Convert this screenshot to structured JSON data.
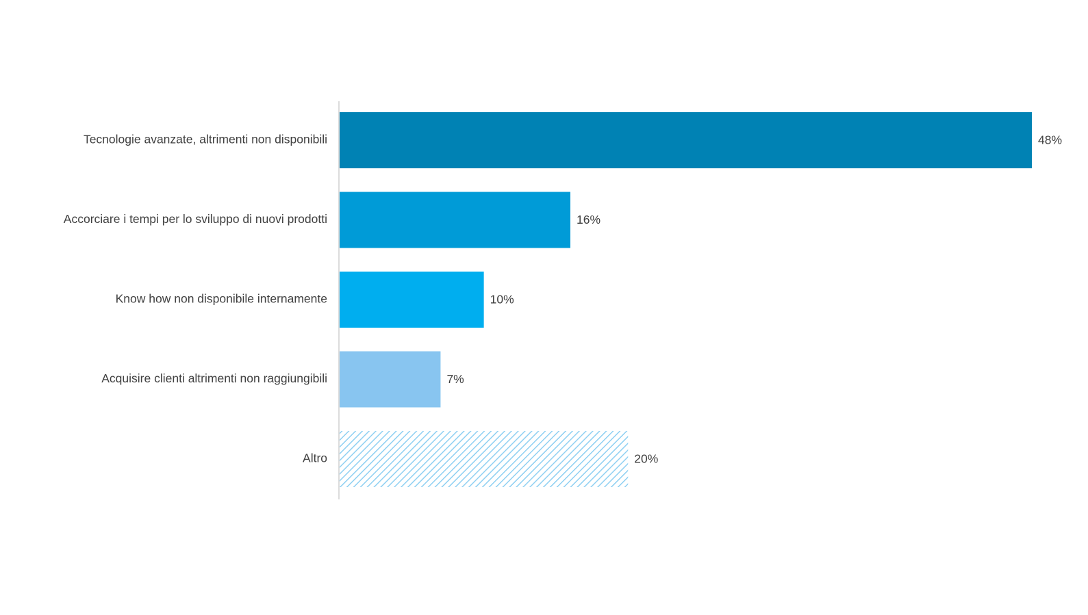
{
  "chart_data": {
    "type": "bar",
    "orientation": "horizontal",
    "categories": [
      "Tecnologie avanzate, altrimenti non disponibili",
      "Accorciare i tempi per lo sviluppo di nuovi prodotti",
      "Know how non disponibile internamente",
      "Acquisire clienti altrimenti non raggiungibili",
      "Altro"
    ],
    "values": [
      48,
      16,
      10,
      7,
      20
    ],
    "value_labels": [
      "48%",
      "16%",
      "10%",
      "7%",
      "20%"
    ],
    "bar_colors": [
      "#0082b4",
      "#009bd7",
      "#00aeef",
      "#88c5f0",
      "#8fd0f2"
    ],
    "bar_styles": [
      "solid",
      "solid",
      "solid",
      "solid",
      "hatched"
    ],
    "xlim": [
      0,
      48
    ],
    "title": "",
    "xlabel": "",
    "ylabel": "",
    "grid": false,
    "legend": "none",
    "text_color": "#404040",
    "axis_color": "#d0d0d0"
  }
}
